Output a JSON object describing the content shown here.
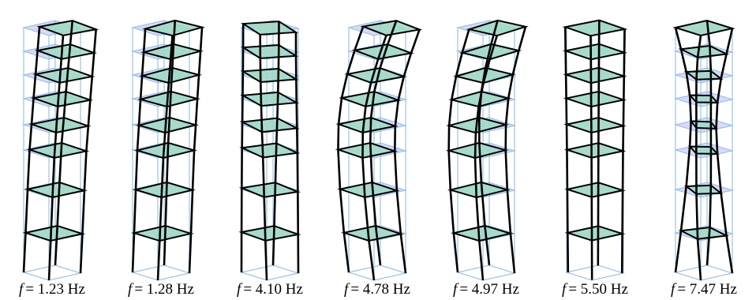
{
  "panels": [
    {
      "symbol": "f",
      "text": "= 1.23 Hz"
    },
    {
      "symbol": "f",
      "text": "= 1.28 Hz"
    },
    {
      "symbol": "f",
      "text": "= 4.10 Hz"
    },
    {
      "symbol": "f",
      "text": "= 4.78 Hz"
    },
    {
      "symbol": "f",
      "text": "= 4.97 Hz"
    },
    {
      "symbol": "f",
      "text": "= 5.50 Hz"
    },
    {
      "symbol": "f",
      "text": "= 7.47 Hz"
    }
  ]
}
